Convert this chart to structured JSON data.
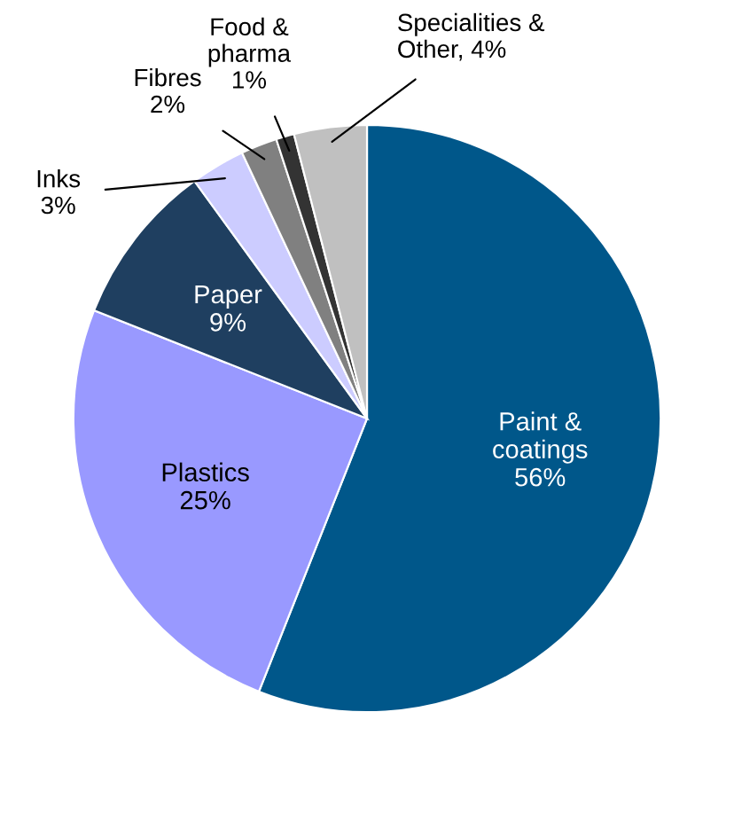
{
  "chart_data": {
    "type": "pie",
    "categories": [
      "Paint &\ncoatings",
      "Plastics",
      "Paper",
      "Inks",
      "Fibres",
      "Food &\npharma",
      "Specialities &\nOther"
    ],
    "values": [
      56,
      25,
      9,
      3,
      2,
      1,
      4
    ],
    "colors": [
      "#00578a",
      "#9999ff",
      "#1f3f60",
      "#ccccff",
      "#808080",
      "#333333",
      "#c0c0c0"
    ],
    "value_labels": [
      "56%",
      "25%",
      "9%",
      "3%",
      "2%",
      "1%",
      "4%"
    ]
  }
}
